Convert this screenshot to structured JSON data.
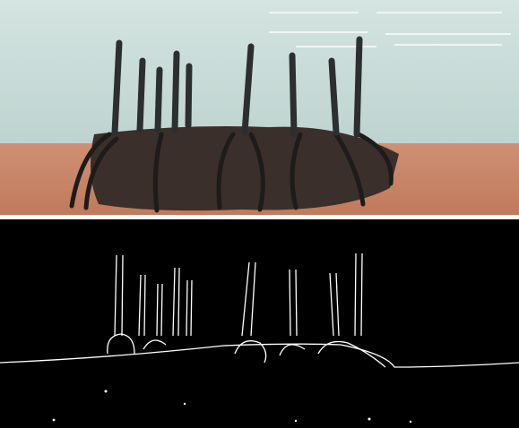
{
  "figure": {
    "top_panel": {
      "content": "photo",
      "colors": {
        "water": "#c9dcd8",
        "sediment": "#c98a6c",
        "stem": "#2b2d2e",
        "root": "#1f1e1d"
      }
    },
    "bottom_panel": {
      "content": "edge-map",
      "colors": {
        "background": "#000000",
        "edge": "#ffffff"
      }
    }
  }
}
